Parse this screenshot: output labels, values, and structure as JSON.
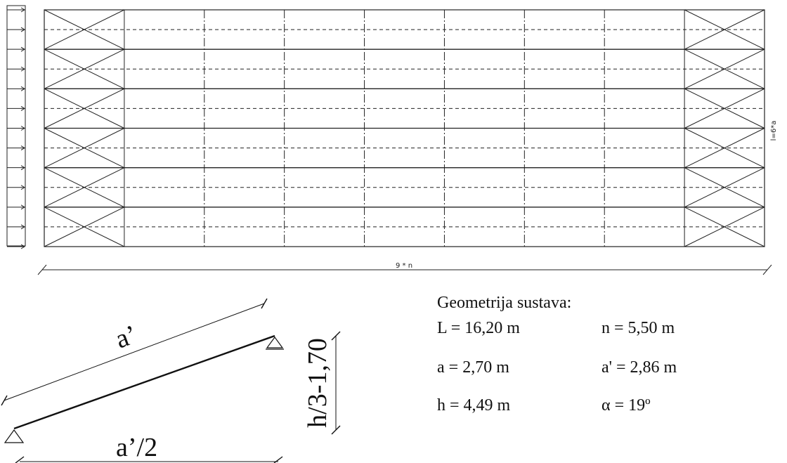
{
  "plan": {
    "bays": 9,
    "rows": 6,
    "length_label": "9 * n",
    "width_label": "l=6*a"
  },
  "detail": {
    "rafter_label": "a’",
    "half_span_label": "a’/2",
    "height_label": "h/3-1,70"
  },
  "geometry": {
    "title": "Geometrija sustava:",
    "params": [
      {
        "text": "L = 16,20 m"
      },
      {
        "text": "n = 5,50 m"
      },
      {
        "text": "a = 2,70 m"
      },
      {
        "text": "a' = 2,86 m"
      },
      {
        "text": "h = 4,49 m"
      },
      {
        "text": "α = 19º"
      }
    ]
  }
}
